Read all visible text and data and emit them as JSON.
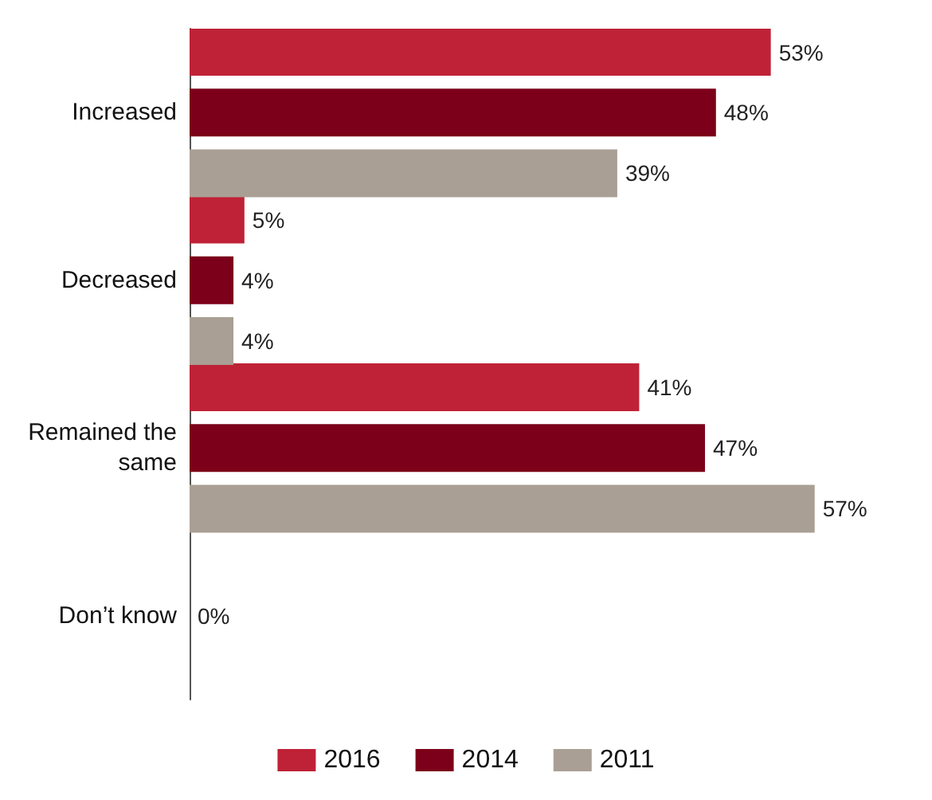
{
  "chart_data": {
    "type": "bar",
    "orientation": "horizontal",
    "categories": [
      "Increased",
      "Decreased",
      "Remained the same",
      "Don’t know"
    ],
    "series": [
      {
        "name": "2016",
        "color": "#bf2236",
        "values": [
          53,
          5,
          41,
          null
        ],
        "value_labels": [
          "53%",
          "5%",
          "41%",
          null
        ]
      },
      {
        "name": "2014",
        "color": "#7c0019",
        "values": [
          48,
          4,
          47,
          0
        ],
        "value_labels": [
          "48%",
          "4%",
          "47%",
          "0%"
        ]
      },
      {
        "name": "2011",
        "color": "#aa9f94",
        "values": [
          39,
          4,
          57,
          null
        ],
        "value_labels": [
          "39%",
          "4%",
          "57%",
          null
        ]
      }
    ],
    "legend": "bottom"
  }
}
